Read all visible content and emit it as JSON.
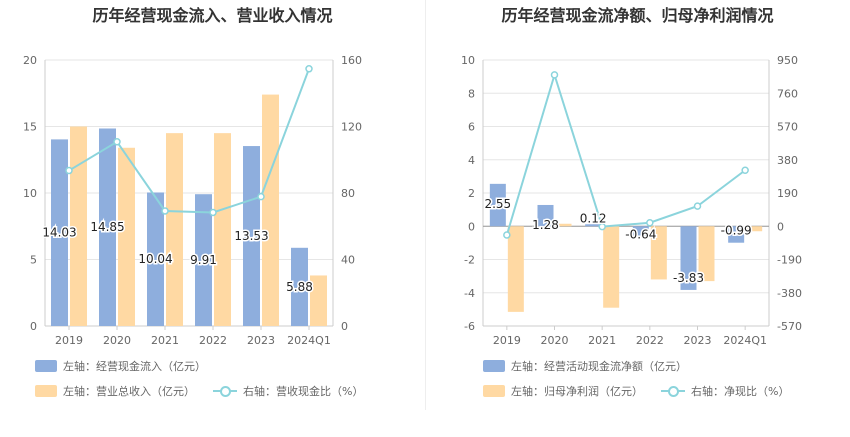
{
  "chart_data": [
    {
      "type": "bar",
      "title": "历年经营现金流入、营业收入情况",
      "categories": [
        "2019",
        "2020",
        "2021",
        "2022",
        "2023",
        "2024Q1"
      ],
      "y_left": {
        "ticks": [
          "0",
          "5",
          "10",
          "15",
          "20"
        ],
        "range": [
          0,
          20
        ]
      },
      "y_right": {
        "ticks": [
          "0",
          "40",
          "80",
          "120",
          "160"
        ],
        "range": [
          0,
          160
        ]
      },
      "series": [
        {
          "name": "左轴：经营现金流入（亿元）",
          "kind": "bar",
          "axis": "left",
          "color": "#8eaedd",
          "values": [
            14.03,
            14.85,
            10.04,
            9.91,
            13.53,
            5.88
          ],
          "labels": [
            "14.03",
            "14.85",
            "10.04",
            "9.91",
            "13.53",
            "5.88"
          ]
        },
        {
          "name": "左轴：营业总收入（亿元）",
          "kind": "bar",
          "axis": "left",
          "color": "#ffd9a3",
          "values": [
            15.0,
            13.4,
            14.5,
            14.5,
            17.4,
            3.8
          ]
        },
        {
          "name": "右轴：营收现金比（%）",
          "kind": "line",
          "axis": "right",
          "color": "#8bd4dc",
          "values": [
            93.5,
            110.8,
            69.2,
            68.3,
            77.8,
            154.7
          ]
        }
      ]
    },
    {
      "type": "bar",
      "title": "历年经营现金流净额、归母净利润情况",
      "categories": [
        "2019",
        "2020",
        "2021",
        "2022",
        "2023",
        "2024Q1"
      ],
      "y_left": {
        "ticks": [
          "-6",
          "-4",
          "-2",
          "0",
          "2",
          "4",
          "6",
          "8",
          "10"
        ],
        "range": [
          -6,
          10
        ]
      },
      "y_right": {
        "ticks": [
          "-570",
          "-380",
          "-190",
          "0",
          "190",
          "380",
          "570",
          "760",
          "950"
        ],
        "range": [
          -570,
          950
        ]
      },
      "series": [
        {
          "name": "左轴：经营活动现金流净额（亿元）",
          "kind": "bar",
          "axis": "left",
          "color": "#8eaedd",
          "values": [
            2.55,
            1.28,
            0.12,
            -0.64,
            -3.83,
            -0.99
          ],
          "labels": [
            "2.55",
            "1.28",
            "0.12",
            "-0.64",
            "-3.83",
            "-0.99"
          ]
        },
        {
          "name": "左轴：归母净利润（亿元）",
          "kind": "bar",
          "axis": "left",
          "color": "#ffd9a3",
          "values": [
            -5.15,
            0.15,
            -4.9,
            -3.2,
            -3.3,
            -0.3
          ]
        },
        {
          "name": "右轴：净现比（%）",
          "kind": "line",
          "axis": "right",
          "color": "#8bd4dc",
          "values": [
            -50,
            865,
            -2,
            20,
            115,
            320
          ]
        }
      ]
    }
  ]
}
